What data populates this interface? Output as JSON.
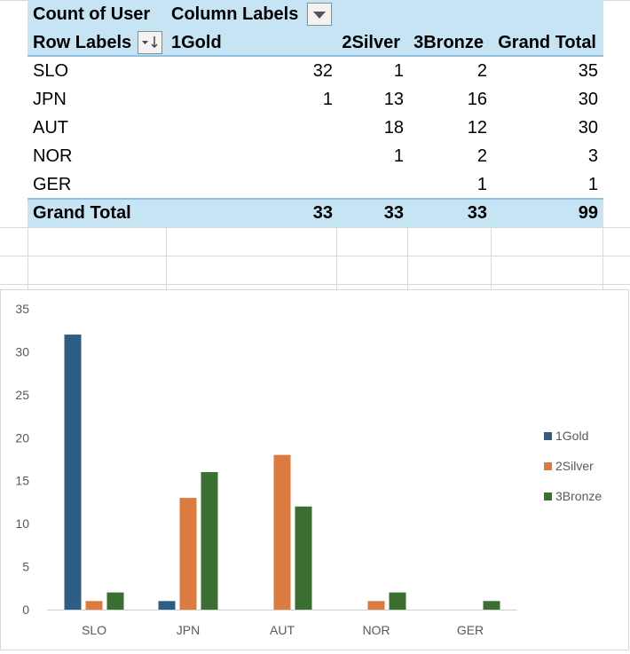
{
  "pivot": {
    "value_field": "Count of User",
    "column_labels": "Column Labels",
    "row_labels": "Row Labels",
    "columns": [
      "1Gold",
      "2Silver",
      "3Bronze",
      "Grand Total"
    ],
    "rows": [
      {
        "label": "SLO",
        "values": [
          "32",
          "1",
          "2",
          "35"
        ]
      },
      {
        "label": "JPN",
        "values": [
          "1",
          "13",
          "16",
          "30"
        ]
      },
      {
        "label": "AUT",
        "values": [
          "",
          "18",
          "12",
          "30"
        ]
      },
      {
        "label": "NOR",
        "values": [
          "",
          "1",
          "2",
          "3"
        ]
      },
      {
        "label": "GER",
        "values": [
          "",
          "",
          "1",
          "1"
        ]
      }
    ],
    "grand_total": {
      "label": "Grand Total",
      "values": [
        "33",
        "33",
        "33",
        "99"
      ]
    },
    "colors": {
      "header_fill": "#c6e4f3",
      "header_border": "#8fc1e2"
    }
  },
  "chart_data": {
    "type": "bar",
    "categories": [
      "SLO",
      "JPN",
      "AUT",
      "NOR",
      "GER"
    ],
    "series": [
      {
        "name": "1Gold",
        "values": [
          32,
          1,
          0,
          0,
          0
        ],
        "color": "#2e5e83"
      },
      {
        "name": "2Silver",
        "values": [
          1,
          13,
          18,
          1,
          0
        ],
        "color": "#dd7a3f"
      },
      {
        "name": "3Bronze",
        "values": [
          2,
          16,
          12,
          2,
          1
        ],
        "color": "#3b6e31"
      }
    ],
    "ylim": [
      0,
      35
    ],
    "yticks": [
      0,
      5,
      10,
      15,
      20,
      25,
      30,
      35
    ],
    "grid": false,
    "legend": "right",
    "title": "",
    "xlabel": "",
    "ylabel": ""
  }
}
